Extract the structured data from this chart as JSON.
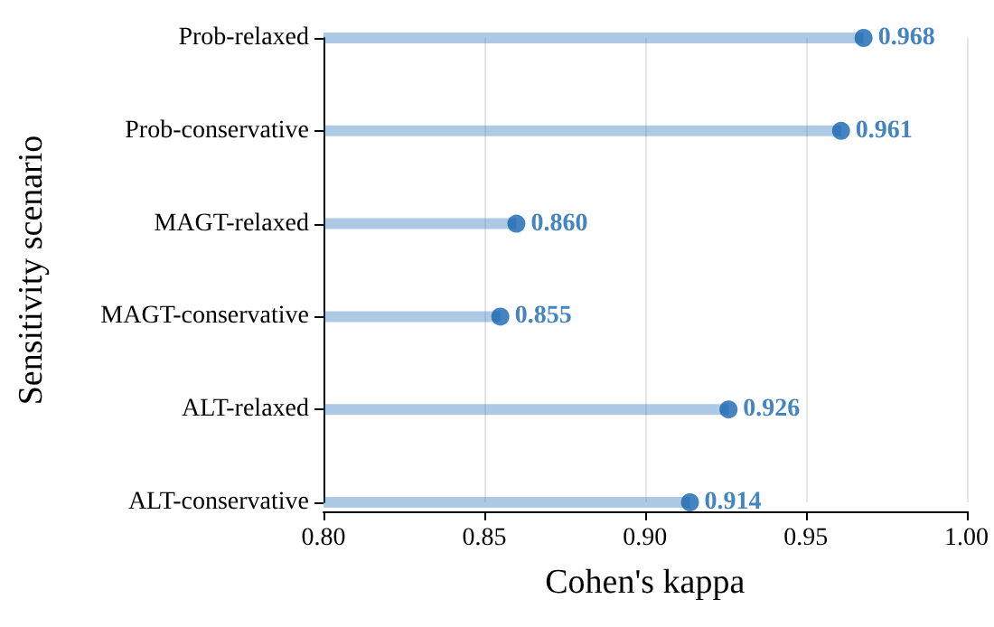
{
  "chart_data": {
    "type": "lollipop",
    "orientation": "horizontal",
    "xlabel": "Cohen's kappa",
    "ylabel": "Sensitivity scenario",
    "categories": [
      "Prob-relaxed",
      "Prob-conservative",
      "MAGT-relaxed",
      "MAGT-conservative",
      "ALT-relaxed",
      "ALT-conservative"
    ],
    "values": [
      0.968,
      0.961,
      0.86,
      0.855,
      0.926,
      0.914
    ],
    "value_labels": [
      "0.968",
      "0.961",
      "0.860",
      "0.855",
      "0.926",
      "0.914"
    ],
    "color": "#1565b0",
    "marker": "circle",
    "xlim": [
      0.8,
      1.0
    ],
    "xticks": [
      {
        "value": 0.8,
        "label": "0.80"
      },
      {
        "value": 0.85,
        "label": "0.85"
      },
      {
        "value": 0.9,
        "label": "0.90"
      },
      {
        "value": 0.95,
        "label": "0.95"
      },
      {
        "value": 1.0,
        "label": "1.00"
      }
    ],
    "grid": "x"
  }
}
